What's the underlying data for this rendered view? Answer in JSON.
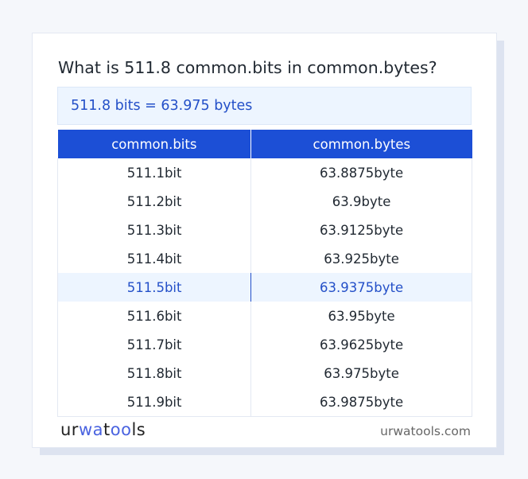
{
  "title": "What is 511.8 common.bits in common.bytes?",
  "result": "511.8 bits = 63.975 bytes",
  "table": {
    "headers": [
      "common.bits",
      "common.bytes"
    ],
    "rows": [
      [
        "511.1bit",
        "63.8875byte"
      ],
      [
        "511.2bit",
        "63.9byte"
      ],
      [
        "511.3bit",
        "63.9125byte"
      ],
      [
        "511.4bit",
        "63.925byte"
      ],
      [
        "511.5bit",
        "63.9375byte"
      ],
      [
        "511.6bit",
        "63.95byte"
      ],
      [
        "511.7bit",
        "63.9625byte"
      ],
      [
        "511.8bit",
        "63.975byte"
      ],
      [
        "511.9bit",
        "63.9875byte"
      ]
    ],
    "highlighted_row": 4
  },
  "footer": {
    "logo": "urwatools",
    "site": "urwatools.com"
  },
  "colors": {
    "accent": "#1c4fd6",
    "highlight_bg": "#edf5ff",
    "highlight_text": "#2450c8"
  }
}
